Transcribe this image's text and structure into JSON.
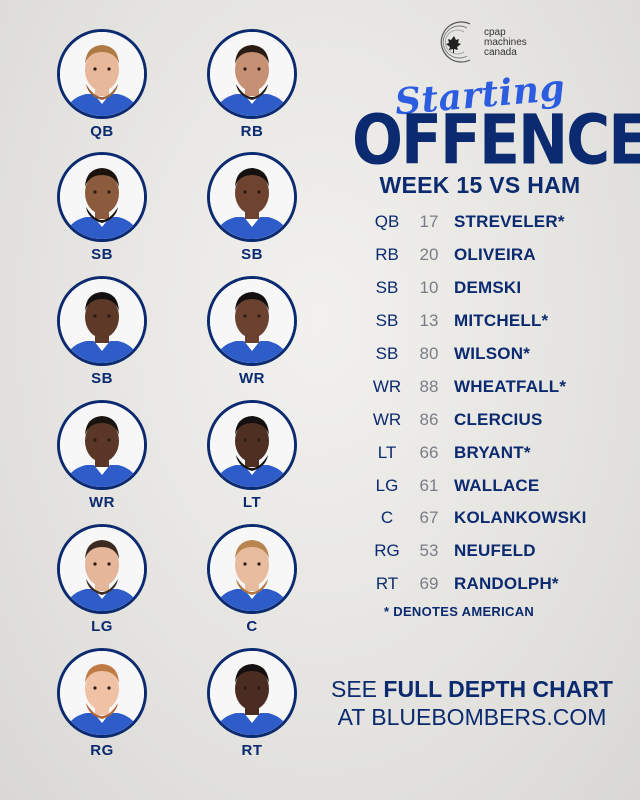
{
  "logo": {
    "icon": "cpap-c-maple-icon",
    "lines": [
      "cpap",
      "machines",
      "canada"
    ]
  },
  "title": {
    "script": "Starting",
    "main": "OFFENCE",
    "subtitle": "WEEK 15 VS HAM"
  },
  "colors": {
    "navy": "#0b2a6f",
    "royal": "#2c5de0",
    "jersey": "#2e5cc9"
  },
  "portraits": [
    {
      "label": "QB",
      "skin": "#e7b89a",
      "hair": "#b07a45",
      "beard": "#9a6438"
    },
    {
      "label": "RB",
      "skin": "#c69074",
      "hair": "#2a1c14",
      "beard": "#2a1c14"
    },
    {
      "label": "SB",
      "skin": "#8c5a3c",
      "hair": "#1a120d",
      "beard": "#1a120d"
    },
    {
      "label": "SB",
      "skin": "#6e4330",
      "hair": "#141010",
      "beard": ""
    },
    {
      "label": "SB",
      "skin": "#5d3a28",
      "hair": "#141010",
      "beard": ""
    },
    {
      "label": "WR",
      "skin": "#6b4230",
      "hair": "#141010",
      "beard": ""
    },
    {
      "label": "WR",
      "skin": "#5a3726",
      "hair": "#1a1410",
      "beard": ""
    },
    {
      "label": "LT",
      "skin": "#4e2f22",
      "hair": "#141010",
      "beard": "#141010"
    },
    {
      "label": "LG",
      "skin": "#e5b699",
      "hair": "#3a2a20",
      "beard": "#3a2a20"
    },
    {
      "label": "C",
      "skin": "#e8bd9f",
      "hair": "#b98550",
      "beard": "#b07840"
    },
    {
      "label": "RG",
      "skin": "#efc2a6",
      "hair": "#c07a45",
      "beard": "#b5653a"
    },
    {
      "label": "RT",
      "skin": "#4a2c20",
      "hair": "#141010",
      "beard": ""
    }
  ],
  "roster": [
    {
      "pos": "QB",
      "num": "17",
      "name": "STREVELER*"
    },
    {
      "pos": "RB",
      "num": "20",
      "name": "OLIVEIRA"
    },
    {
      "pos": "SB",
      "num": "10",
      "name": "DEMSKI"
    },
    {
      "pos": "SB",
      "num": "13",
      "name": "MITCHELL*"
    },
    {
      "pos": "SB",
      "num": "80",
      "name": "WILSON*"
    },
    {
      "pos": "WR",
      "num": "88",
      "name": "WHEATFALL*"
    },
    {
      "pos": "WR",
      "num": "86",
      "name": "CLERCIUS"
    },
    {
      "pos": "LT",
      "num": "66",
      "name": "BRYANT*"
    },
    {
      "pos": "LG",
      "num": "61",
      "name": "WALLACE"
    },
    {
      "pos": "C",
      "num": "67",
      "name": "KOLANKOWSKI"
    },
    {
      "pos": "RG",
      "num": "53",
      "name": "NEUFELD"
    },
    {
      "pos": "RT",
      "num": "69",
      "name": "RANDOLPH*"
    }
  ],
  "note": "* DENOTES AMERICAN",
  "cta": {
    "prefix": "SEE ",
    "bold": "FULL DEPTH CHART",
    "line2": "AT BLUEBOMBERS.COM"
  }
}
